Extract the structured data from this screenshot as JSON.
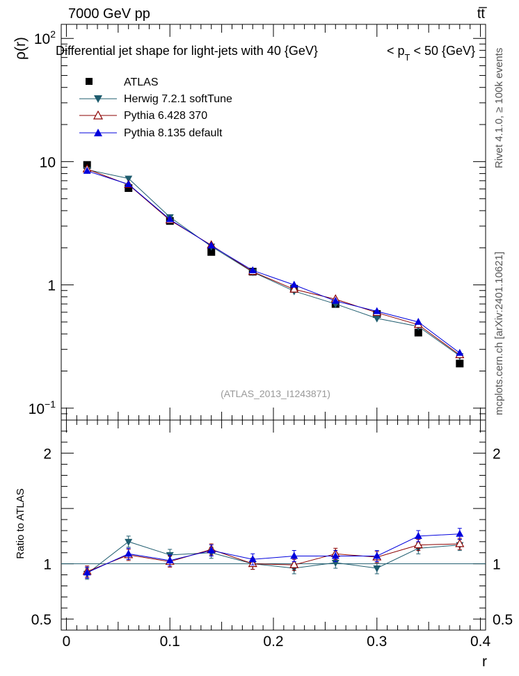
{
  "header": {
    "left": "7000 GeV pp",
    "right": "tt̅"
  },
  "side_labels": {
    "rivet": "Rivet 4.1.0, ≥ 100k events",
    "mcplots": "mcplots.cern.ch [arXiv:2401.10621]"
  },
  "reference_label": "(ATLAS_2013_I1243871)",
  "colors": {
    "atlas": "#000000",
    "herwig": "#1e5c6e",
    "pythia6": "#8b0000",
    "pythia8": "#0000dd"
  },
  "chart_data": [
    {
      "type": "line",
      "panel": "main",
      "title_parts": [
        "Differential jet shape for light-jets with 40 {GeV}",
        "< p",
        "T",
        " < 50 {GeV}"
      ],
      "ylabel": "ρ(r)",
      "yscale": "log",
      "ylim": [
        0.08,
        130
      ],
      "xlim": [
        -0.005,
        0.405
      ],
      "y_ticks": [
        {
          "value": 100,
          "base": "10",
          "exp": "2"
        },
        {
          "value": 10,
          "base": "10",
          "exp": ""
        },
        {
          "value": 1,
          "base": "1",
          "exp": ""
        },
        {
          "value": 0.1,
          "base": "10",
          "exp": "−1"
        }
      ],
      "x": [
        0.02,
        0.06,
        0.1,
        0.14,
        0.18,
        0.22,
        0.26,
        0.3,
        0.34,
        0.38
      ],
      "series": [
        {
          "key": "atlas",
          "name": "ATLAS",
          "marker": "square",
          "values": [
            9.4,
            6.1,
            3.3,
            1.85,
            1.28,
            0.93,
            0.7,
            0.58,
            0.41,
            0.23
          ]
        },
        {
          "key": "herwig",
          "name": "Herwig 7.2.1 softTune",
          "marker": "triangle-down",
          "values": [
            8.6,
            7.3,
            3.55,
            2.05,
            1.27,
            0.89,
            0.7,
            0.535,
            0.46,
            0.265
          ]
        },
        {
          "key": "pythia6",
          "name": "Pythia 6.428 370",
          "marker": "triangle-up-open",
          "values": [
            8.7,
            6.5,
            3.35,
            2.1,
            1.28,
            0.92,
            0.765,
            0.595,
            0.475,
            0.27
          ]
        },
        {
          "key": "pythia8",
          "name": "Pythia 8.135 default",
          "marker": "triangle-up",
          "values": [
            8.4,
            6.55,
            3.4,
            2.08,
            1.31,
            1.0,
            0.74,
            0.61,
            0.5,
            0.28
          ]
        }
      ]
    },
    {
      "type": "line",
      "panel": "ratio",
      "ylabel": "Ratio to ATLAS",
      "xlabel": "r",
      "ylim": [
        0.4,
        2.3
      ],
      "xlim": [
        -0.005,
        0.405
      ],
      "y_ticks": [
        {
          "value": 2,
          "label": "2"
        },
        {
          "value": 1,
          "label": "1"
        },
        {
          "value": 0.5,
          "label": "0.5"
        }
      ],
      "x_ticks": [
        {
          "value": 0,
          "label": "0"
        },
        {
          "value": 0.1,
          "label": "0.1"
        },
        {
          "value": 0.2,
          "label": "0.2"
        },
        {
          "value": 0.3,
          "label": "0.3"
        },
        {
          "value": 0.4,
          "label": "0.4"
        }
      ],
      "x": [
        0.02,
        0.06,
        0.1,
        0.14,
        0.18,
        0.22,
        0.26,
        0.3,
        0.34,
        0.38
      ],
      "series": [
        {
          "key": "herwig",
          "name": "Herwig 7.2.1 softTune",
          "values": [
            0.91,
            1.2,
            1.08,
            1.1,
            1.0,
            0.96,
            1.01,
            0.96,
            1.14,
            1.17
          ]
        },
        {
          "key": "pythia6",
          "name": "Pythia 6.428 370",
          "values": [
            0.93,
            1.08,
            1.02,
            1.13,
            1.0,
            0.99,
            1.09,
            1.06,
            1.17,
            1.18
          ]
        },
        {
          "key": "pythia8",
          "name": "Pythia 8.135 default",
          "values": [
            0.92,
            1.09,
            1.03,
            1.12,
            1.04,
            1.07,
            1.07,
            1.07,
            1.25,
            1.27
          ]
        }
      ]
    }
  ]
}
